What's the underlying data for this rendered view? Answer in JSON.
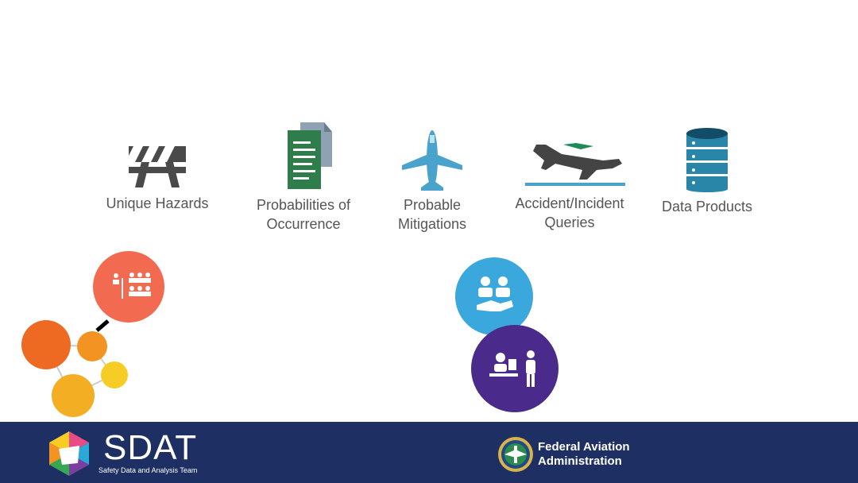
{
  "features": [
    {
      "label": "Unique Hazards",
      "icon": "barricade-icon"
    },
    {
      "label": "Probabilities of\nOccurrence",
      "icon": "document-icon"
    },
    {
      "label": "Probable\nMitigations",
      "icon": "airplane-icon"
    },
    {
      "label": "Accident/Incident\nQueries",
      "icon": "airplane-takeoff-icon"
    },
    {
      "label": "Data Products",
      "icon": "database-icon"
    }
  ],
  "bubbles": [
    {
      "icon": "org-chart-icon",
      "color": "#f26b50"
    },
    {
      "icon": "molecule-network-icon",
      "colors": [
        "#ee6a22",
        "#f39322",
        "#f3ae24",
        "#f7cd25"
      ]
    },
    {
      "icon": "handshake-meeting-icon",
      "color": "#3aa8dc"
    },
    {
      "icon": "consultation-icon",
      "color": "#4a2a8a"
    }
  ],
  "footer": {
    "sdat_title": "SDAT",
    "sdat_subtitle": "Safety Data and Analysis Team",
    "faa_name": "Federal Aviation\nAdministration",
    "background": "#1e2f63"
  },
  "colors": {
    "label_text": "#555555",
    "doc_green": "#2e7d4a",
    "plane_blue": "#4aa3cc",
    "accent_green": "#1e8a55",
    "database_blue": "#2a86a8"
  }
}
